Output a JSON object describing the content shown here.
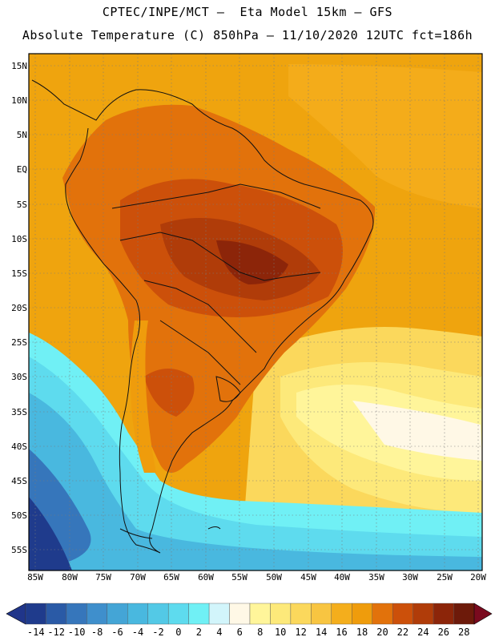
{
  "title": {
    "line1": "CPTEC/INPE/MCT –  Eta Model 15km – GFS",
    "line2": "Absolute Temperature (C) 850hPa – 11/10/2020 12UTC fct=186h"
  },
  "axes": {
    "lat_labels": [
      "15N",
      "10N",
      "5N",
      "EQ",
      "5S",
      "10S",
      "15S",
      "20S",
      "25S",
      "30S",
      "35S",
      "40S",
      "45S",
      "50S",
      "55S"
    ],
    "lon_labels": [
      "85W",
      "80W",
      "75W",
      "70W",
      "65W",
      "60W",
      "55W",
      "50W",
      "45W",
      "40W",
      "35W",
      "30W",
      "25W",
      "20W"
    ]
  },
  "colorbar": {
    "labels": [
      "-14",
      "-12",
      "-10",
      "-8",
      "-6",
      "-4",
      "-2",
      "0",
      "2",
      "4",
      "6",
      "8",
      "10",
      "12",
      "14",
      "16",
      "18",
      "20",
      "22",
      "24",
      "26",
      "28"
    ],
    "colors": [
      "#1f3b8c",
      "#2a5aa6",
      "#3676bb",
      "#3f8fcc",
      "#44a5d6",
      "#49b8df",
      "#53c9e6",
      "#5edbee",
      "#70f0f5",
      "#d2f5fb",
      "#fff8e6",
      "#fff59a",
      "#fde97a",
      "#fbd85c",
      "#f8c541",
      "#f4ae1c",
      "#ef9c0c",
      "#e2720b",
      "#cc500a",
      "#b03c09",
      "#8c2509",
      "#6d1a0a"
    ],
    "under_color": "#20358a",
    "over_color": "#7a0a1e"
  }
}
